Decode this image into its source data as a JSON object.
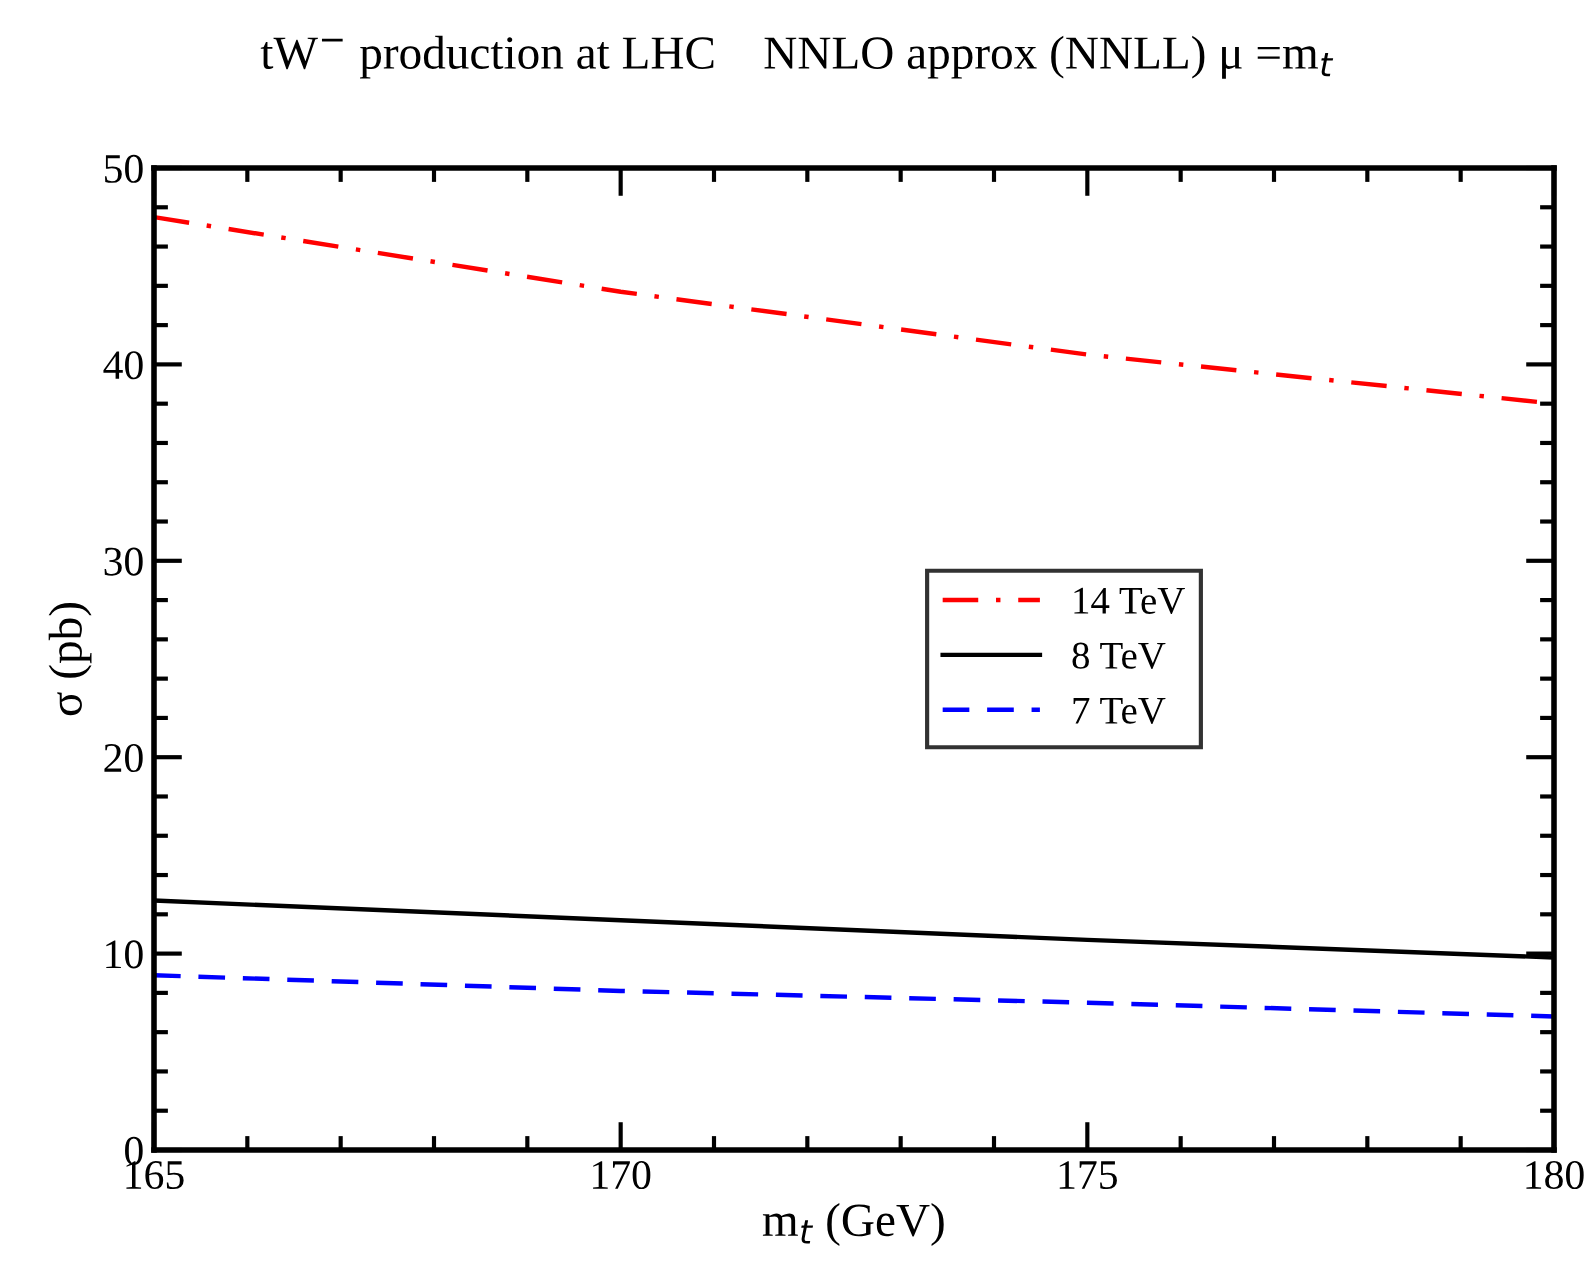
{
  "chart_data": {
    "type": "line",
    "title": "tW$^{−}$ production at LHC    NNLO approx (NNLL) μ =m$_{t}$",
    "xlabel": "m$_{t}$ (GeV)",
    "ylabel": "σ (pb)",
    "x": [
      165,
      170,
      175,
      180
    ],
    "series": [
      {
        "name": "14 TeV",
        "color": "#ff0000",
        "line_style": "dashdot",
        "values": [
          47.5,
          43.7,
          40.5,
          38.0
        ]
      },
      {
        "name": "8 TeV",
        "color": "#000000",
        "line_style": "solid",
        "values": [
          12.7,
          11.7,
          10.7,
          9.8
        ]
      },
      {
        "name": "7 TeV",
        "color": "#0000ff",
        "line_style": "dashed",
        "values": [
          8.9,
          8.1,
          7.5,
          6.8
        ]
      }
    ],
    "xlim": [
      165,
      180
    ],
    "xticks": [
      165,
      170,
      175,
      180
    ],
    "ylim": [
      0,
      50
    ],
    "yticks": [
      0,
      10,
      20,
      30,
      40,
      50
    ],
    "grid": false,
    "legend": "center"
  }
}
